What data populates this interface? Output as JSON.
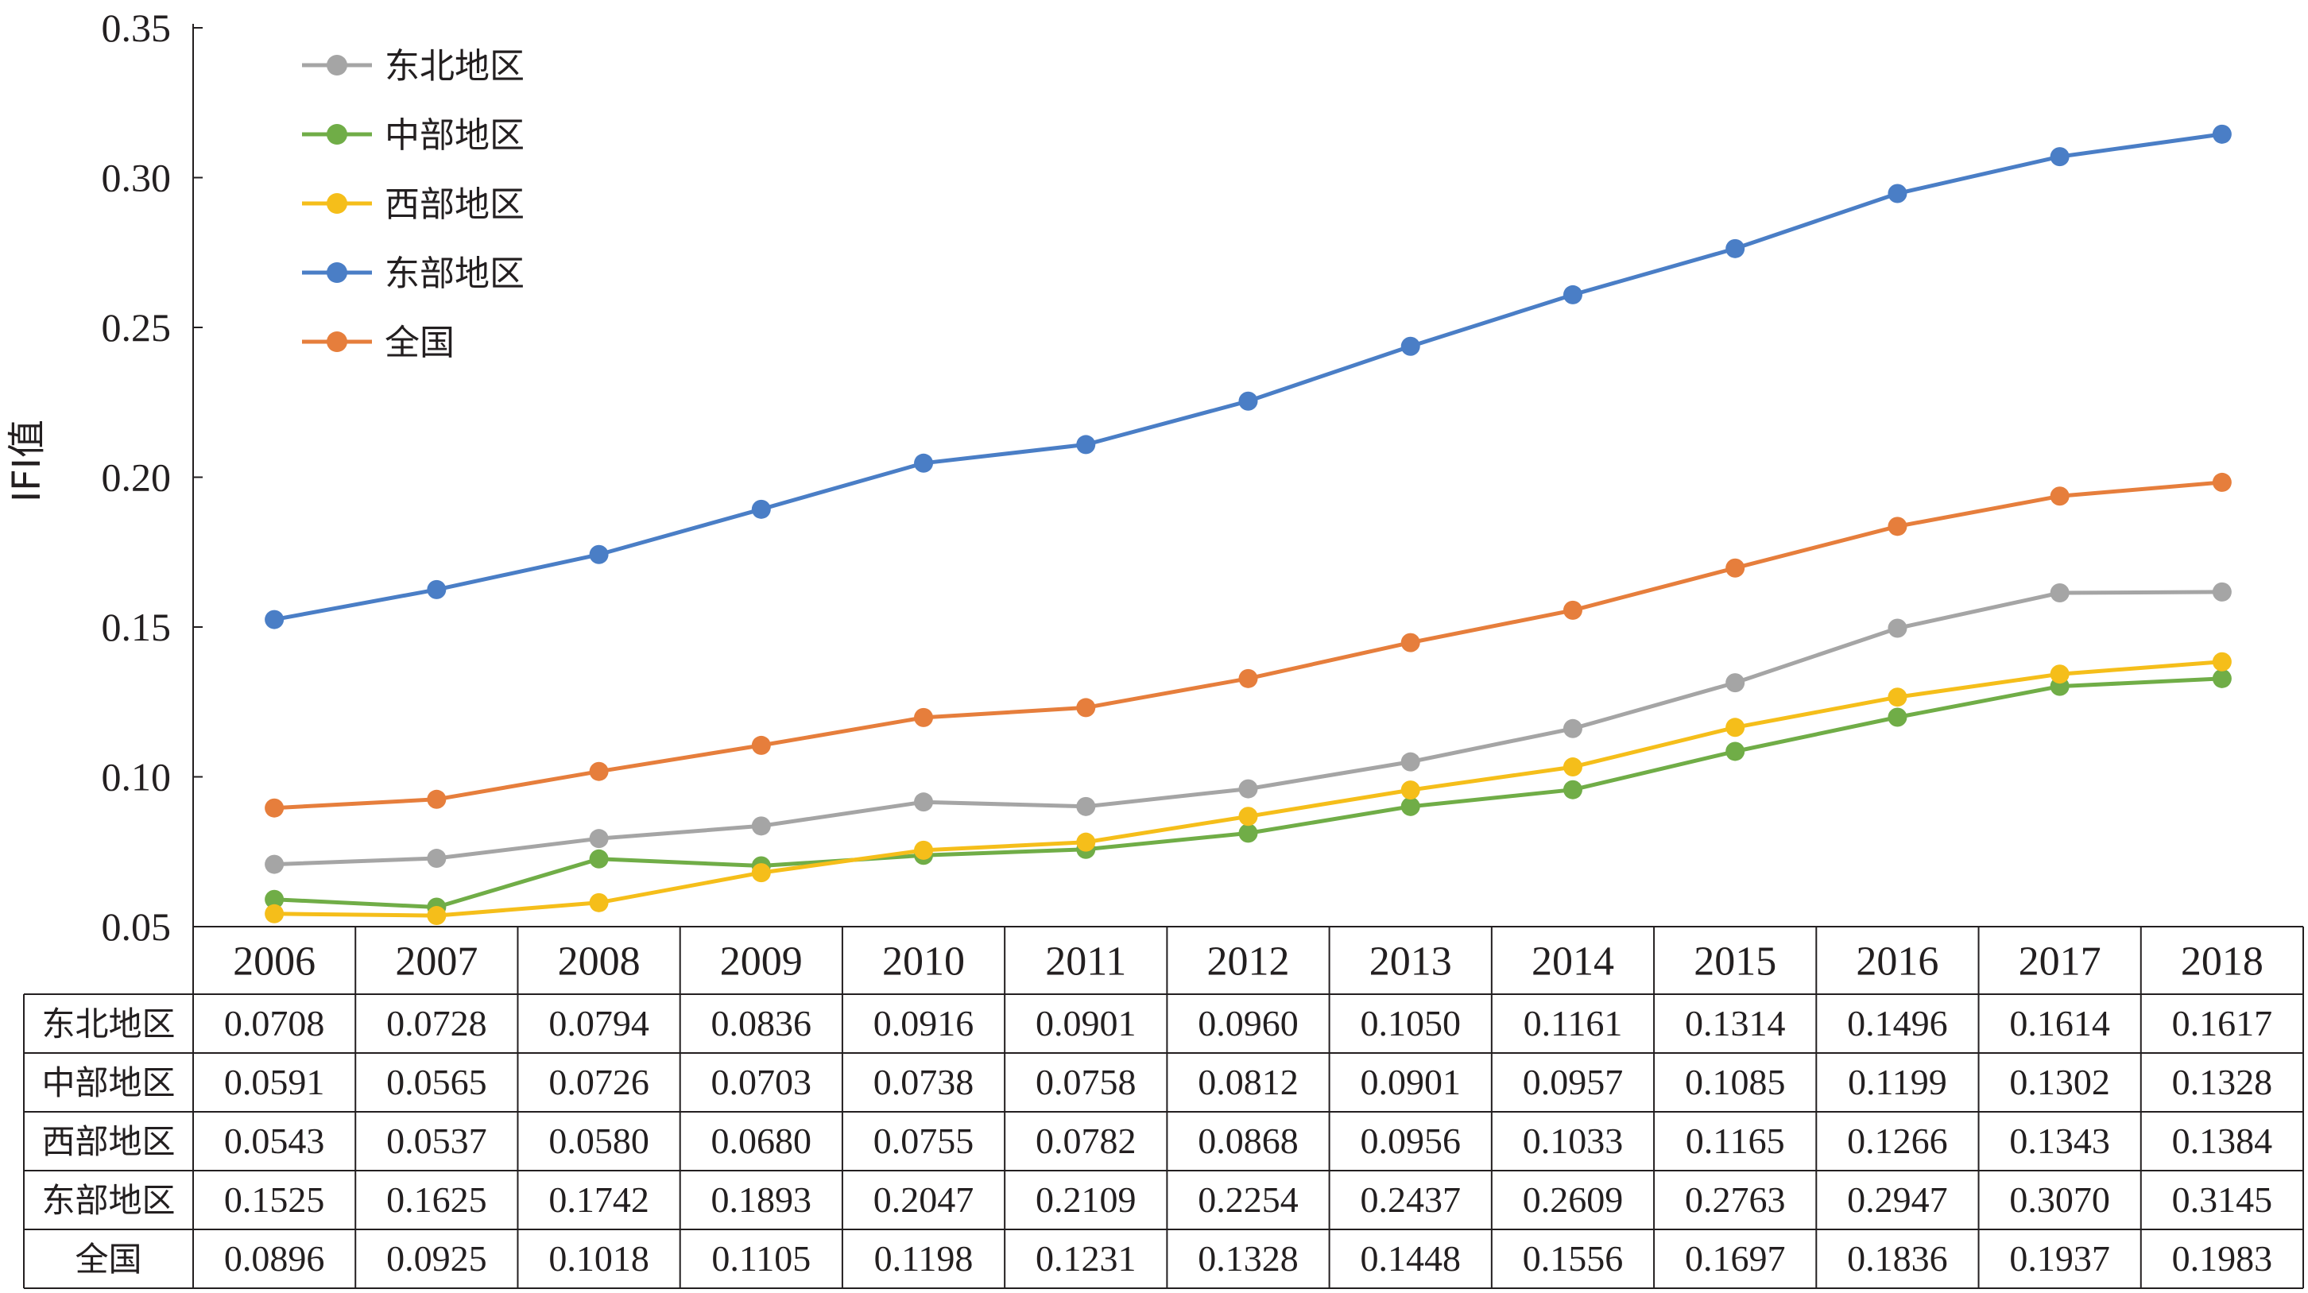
{
  "chart_data": {
    "type": "line",
    "ylabel": "IFI值",
    "ylim": [
      0.05,
      0.35
    ],
    "y_ticks": [
      "0.05",
      "0.10",
      "0.15",
      "0.20",
      "0.25",
      "0.30",
      "0.35"
    ],
    "y_tick_values": [
      0.05,
      0.1,
      0.15,
      0.2,
      0.25,
      0.3,
      0.35
    ],
    "categories": [
      "2006",
      "2007",
      "2008",
      "2009",
      "2010",
      "2011",
      "2012",
      "2013",
      "2014",
      "2015",
      "2016",
      "2017",
      "2018"
    ],
    "legend_position": "top-left",
    "grid": false,
    "series": [
      {
        "name": "东北地区",
        "color": "#a5a5a5",
        "values": [
          0.0708,
          0.0728,
          0.0794,
          0.0836,
          0.0916,
          0.0901,
          0.096,
          0.105,
          0.1161,
          0.1314,
          0.1496,
          0.1614,
          0.1617
        ],
        "labels": [
          "0.0708",
          "0.0728",
          "0.0794",
          "0.0836",
          "0.0916",
          "0.0901",
          "0.0960",
          "0.1050",
          "0.1161",
          "0.1314",
          "0.1496",
          "0.1614",
          "0.1617"
        ]
      },
      {
        "name": "中部地区",
        "color": "#70ad47",
        "values": [
          0.0591,
          0.0565,
          0.0726,
          0.0703,
          0.0738,
          0.0758,
          0.0812,
          0.0901,
          0.0957,
          0.1085,
          0.1199,
          0.1302,
          0.1328
        ],
        "labels": [
          "0.0591",
          "0.0565",
          "0.0726",
          "0.0703",
          "0.0738",
          "0.0758",
          "0.0812",
          "0.0901",
          "0.0957",
          "0.1085",
          "0.1199",
          "0.1302",
          "0.1328"
        ]
      },
      {
        "name": "西部地区",
        "color": "#f5be1a",
        "values": [
          0.0543,
          0.0537,
          0.058,
          0.068,
          0.0755,
          0.0782,
          0.0868,
          0.0956,
          0.1033,
          0.1165,
          0.1266,
          0.1343,
          0.1384
        ],
        "labels": [
          "0.0543",
          "0.0537",
          "0.0580",
          "0.0680",
          "0.0755",
          "0.0782",
          "0.0868",
          "0.0956",
          "0.1033",
          "0.1165",
          "0.1266",
          "0.1343",
          "0.1384"
        ]
      },
      {
        "name": "东部地区",
        "color": "#4a7ec6",
        "values": [
          0.1525,
          0.1625,
          0.1742,
          0.1893,
          0.2047,
          0.2109,
          0.2254,
          0.2437,
          0.2609,
          0.2763,
          0.2947,
          0.307,
          0.3145
        ],
        "labels": [
          "0.1525",
          "0.1625",
          "0.1742",
          "0.1893",
          "0.2047",
          "0.2109",
          "0.2254",
          "0.2437",
          "0.2609",
          "0.2763",
          "0.2947",
          "0.3070",
          "0.3145"
        ]
      },
      {
        "name": "全国",
        "color": "#e67e3c",
        "values": [
          0.0896,
          0.0925,
          0.1018,
          0.1105,
          0.1198,
          0.1231,
          0.1328,
          0.1448,
          0.1556,
          0.1697,
          0.1836,
          0.1937,
          0.1983
        ],
        "labels": [
          "0.0896",
          "0.0925",
          "0.1018",
          "0.1105",
          "0.1198",
          "0.1231",
          "0.1328",
          "0.1448",
          "0.1556",
          "0.1697",
          "0.1836",
          "0.1937",
          "0.1983"
        ]
      }
    ]
  }
}
